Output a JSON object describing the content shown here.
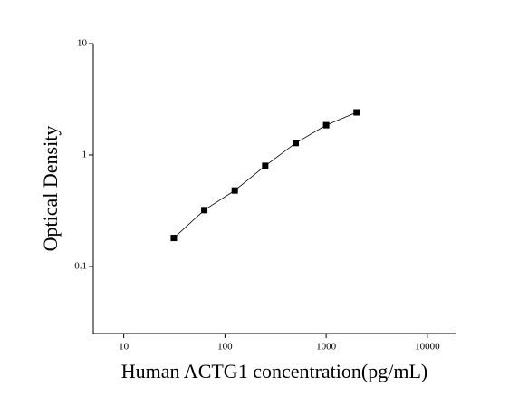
{
  "chart_data": {
    "type": "scatter",
    "x_label": "Human ACTG1 concentration(pg/mL)",
    "y_label": "Optical Density",
    "x": [
      31.25,
      62.5,
      125,
      250,
      500,
      1000,
      2000
    ],
    "series": [
      {
        "color": "#000000",
        "values": [
          0.18,
          0.32,
          0.48,
          0.8,
          1.28,
          1.85,
          2.41
        ]
      }
    ],
    "xlim": [
      5,
      19000
    ],
    "ylim": [
      0.025,
      10
    ],
    "xticks": [
      10,
      100,
      1000,
      10000
    ],
    "yticks": [
      0.1,
      1,
      10
    ],
    "xscale": "log",
    "yscale": "log"
  }
}
